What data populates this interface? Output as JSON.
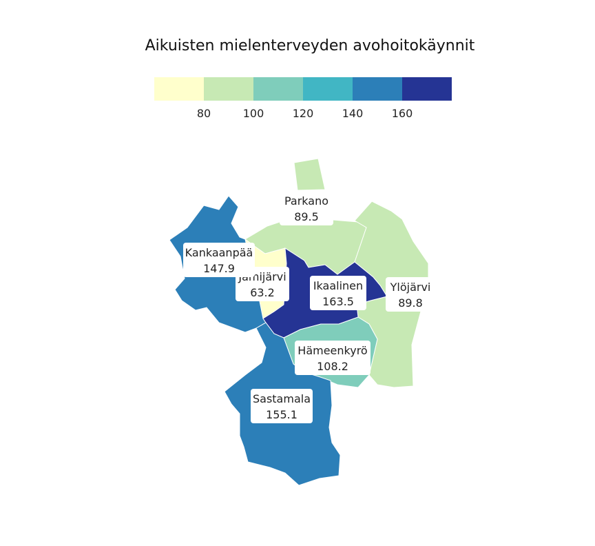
{
  "map": {
    "title": "Aikuisten mielenterveyden avohoitokäynnit",
    "legend": {
      "colors": [
        "#ffffcc",
        "#c7e9b4",
        "#7fcdbb",
        "#41b6c4",
        "#2c7fb8",
        "#253494"
      ],
      "ticks": [
        "80",
        "100",
        "120",
        "140",
        "160"
      ]
    },
    "regions": [
      {
        "name": "Parkano",
        "value": "89.5",
        "color": "#c7e9b4"
      },
      {
        "name": "Ylöjärvi",
        "value": "89.8",
        "color": "#c7e9b4"
      },
      {
        "name": "Jämijärvi",
        "value": "63.2",
        "color": "#ffffcc"
      },
      {
        "name": "Kankaanpää",
        "value": "147.9",
        "color": "#2c7fb8"
      },
      {
        "name": "Ikaalinen",
        "value": "163.5",
        "color": "#253494"
      },
      {
        "name": "Hämeenkyrö",
        "value": "108.2",
        "color": "#7fcdbb"
      },
      {
        "name": "Sastamala",
        "value": "155.1",
        "color": "#2c7fb8"
      }
    ]
  }
}
